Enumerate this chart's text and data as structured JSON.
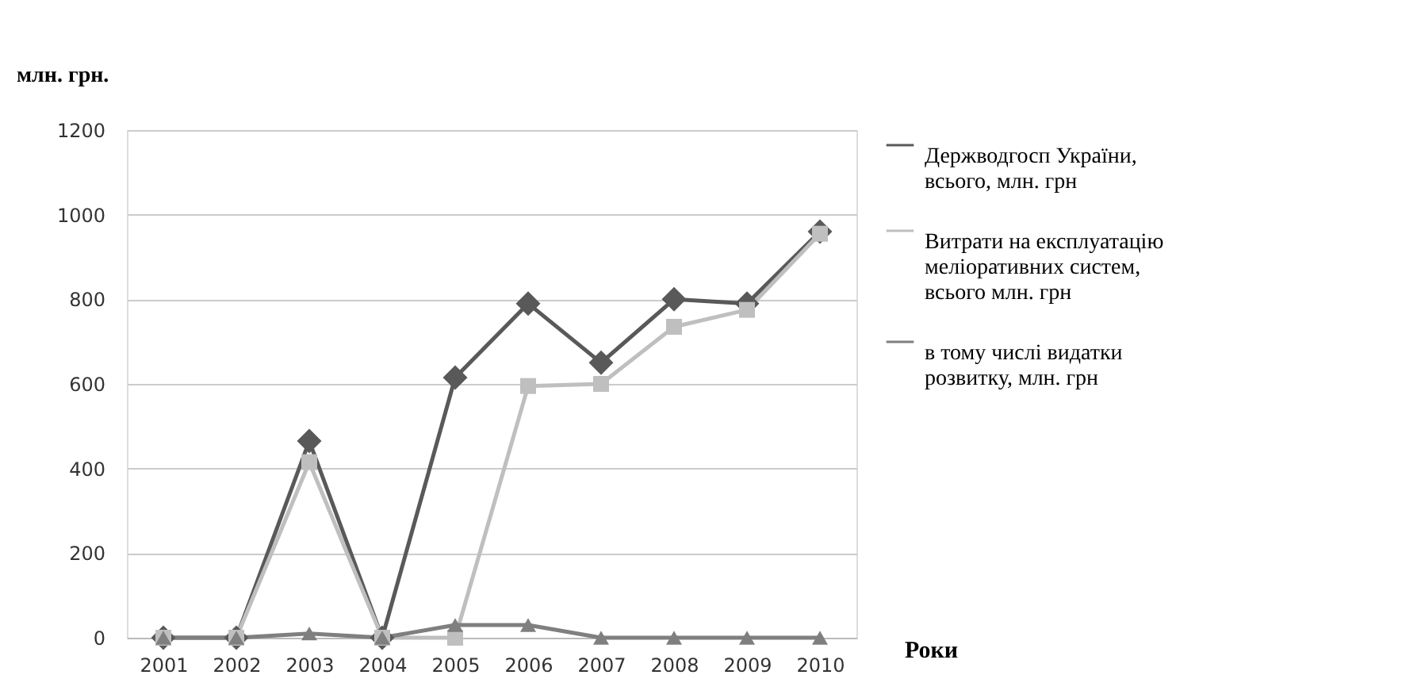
{
  "chart_data": {
    "type": "line",
    "ylabel": "млн. грн.",
    "xlabel": "Роки",
    "categories": [
      "2001",
      "2002",
      "2003",
      "2004",
      "2005",
      "2006",
      "2007",
      "2008",
      "2009",
      "2010"
    ],
    "series": [
      {
        "name": "Держводгосп України, всього, млн. грн",
        "color": "#595959",
        "marker": "diamond",
        "values": [
          0,
          0,
          465,
          0,
          615,
          790,
          650,
          800,
          790,
          960
        ]
      },
      {
        "name": "Витрати на експлуатацію меліоративних систем, всього млн. грн",
        "color": "#bfbfbf",
        "marker": "square",
        "values": [
          0,
          0,
          415,
          0,
          0,
          595,
          600,
          735,
          775,
          955
        ]
      },
      {
        "name": "в тому числі видатки розвитку, млн. грн",
        "color": "#7f7f7f",
        "marker": "triangle",
        "values": [
          0,
          0,
          10,
          0,
          30,
          30,
          0,
          0,
          0,
          0
        ]
      }
    ],
    "ylim": [
      0,
      1200
    ],
    "yticks": [
      0,
      200,
      400,
      600,
      800,
      1000,
      1200
    ],
    "grid": "y",
    "legend": "right",
    "line_style": "solid"
  }
}
